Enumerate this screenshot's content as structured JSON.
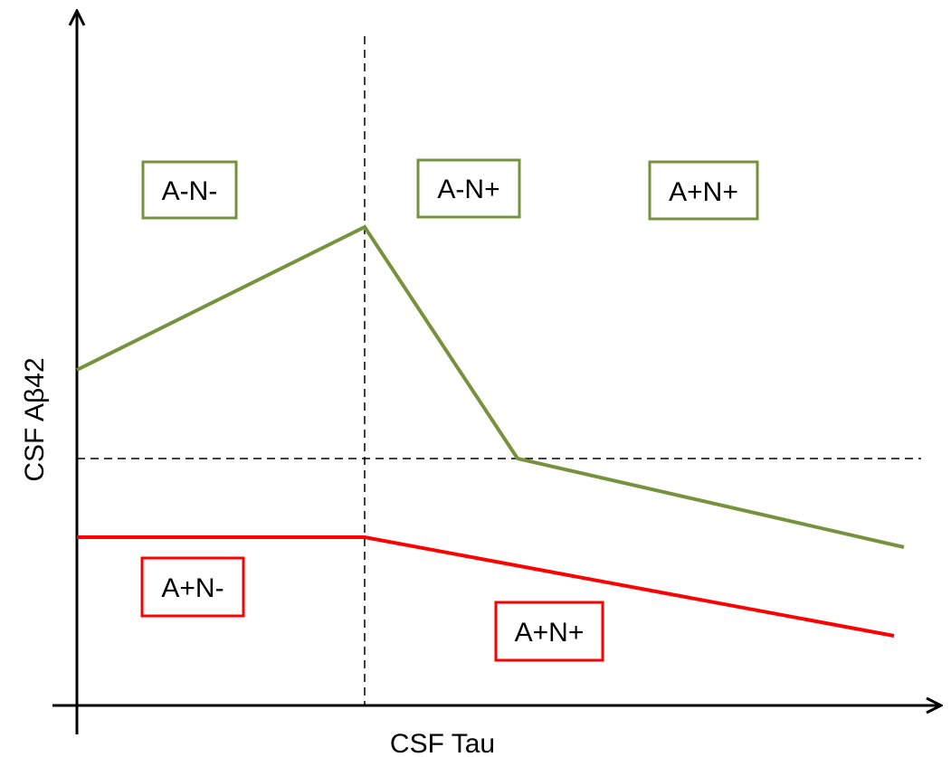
{
  "axes": {
    "x_label": "CSF Tau",
    "y_label": "CSF Aβ42"
  },
  "colors": {
    "green": "#76923C",
    "red": "#FF0000",
    "axis": "#000000",
    "box_fill": "#FFFFFF"
  },
  "curves": {
    "green_curve": {
      "color_key": "green",
      "description_segments": 4
    },
    "red_curve": {
      "color_key": "red",
      "description_segments": 2
    }
  },
  "regions": {
    "green_top_left": "A-N-",
    "green_top_middle": "A-N+",
    "green_top_right": "A+N+",
    "red_bottom_left": "A+N-",
    "red_bottom_right": "A+N+"
  }
}
